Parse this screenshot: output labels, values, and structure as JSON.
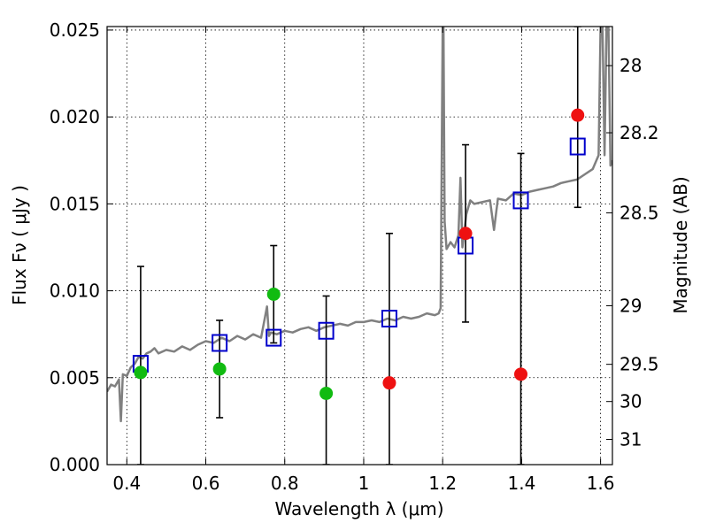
{
  "chart_data": {
    "type": "scatter",
    "xlabel": "Wavelength  λ (μm)",
    "ylabel": "Flux  Fν  ( μJy )",
    "ylabel_right": "Magnitude (AB)",
    "xlim": [
      0.35,
      1.63
    ],
    "ylim": [
      0.0,
      0.0252
    ],
    "grid": true,
    "x_ticks": [
      0.4,
      0.6,
      0.8,
      1.0,
      1.2,
      1.4,
      1.6
    ],
    "x_tick_labels": [
      "0.4",
      "0.6",
      "0.8",
      "1",
      "1.2",
      "1.4",
      "1.6"
    ],
    "y_ticks": [
      0.0,
      0.005,
      0.01,
      0.015,
      0.02,
      0.025
    ],
    "y_tick_labels": [
      "0.000",
      "0.005",
      "0.010",
      "0.015",
      "0.020",
      "0.025"
    ],
    "right_ticks": [
      {
        "label": "28",
        "flux": 0.02295
      },
      {
        "label": "28.2",
        "flux": 0.01909
      },
      {
        "label": "28.5",
        "flux": 0.01448
      },
      {
        "label": "29",
        "flux": 0.00914
      },
      {
        "label": "29.5",
        "flux": 0.00577
      },
      {
        "label": "30",
        "flux": 0.00363
      },
      {
        "label": "31",
        "flux": 0.00145
      }
    ],
    "model_color": "#808080",
    "spectrum": {
      "x": [
        0.35,
        0.36,
        0.37,
        0.38,
        0.385,
        0.39,
        0.4,
        0.41,
        0.42,
        0.43,
        0.44,
        0.45,
        0.46,
        0.47,
        0.48,
        0.5,
        0.52,
        0.54,
        0.56,
        0.58,
        0.6,
        0.62,
        0.64,
        0.66,
        0.68,
        0.7,
        0.72,
        0.74,
        0.755,
        0.76,
        0.765,
        0.78,
        0.8,
        0.82,
        0.84,
        0.86,
        0.88,
        0.9,
        0.92,
        0.94,
        0.96,
        0.98,
        1.0,
        1.02,
        1.04,
        1.06,
        1.08,
        1.1,
        1.12,
        1.14,
        1.16,
        1.18,
        1.19,
        1.195,
        1.2,
        1.202,
        1.205,
        1.21,
        1.22,
        1.23,
        1.24,
        1.245,
        1.25,
        1.26,
        1.27,
        1.28,
        1.3,
        1.32,
        1.33,
        1.34,
        1.36,
        1.38,
        1.4,
        1.42,
        1.44,
        1.46,
        1.48,
        1.5,
        1.52,
        1.54,
        1.56,
        1.58,
        1.595,
        1.6,
        1.605,
        1.61,
        1.615,
        1.62,
        1.625,
        1.63
      ],
      "y": [
        0.0042,
        0.0046,
        0.0045,
        0.0049,
        0.0025,
        0.0052,
        0.0051,
        0.0056,
        0.0058,
        0.0062,
        0.0061,
        0.0064,
        0.0065,
        0.0067,
        0.0064,
        0.0066,
        0.0065,
        0.0068,
        0.0066,
        0.0069,
        0.0071,
        0.007,
        0.0073,
        0.0071,
        0.0074,
        0.0072,
        0.0075,
        0.0073,
        0.0091,
        0.0074,
        0.0076,
        0.0075,
        0.0077,
        0.0076,
        0.0078,
        0.0079,
        0.0077,
        0.0079,
        0.008,
        0.0081,
        0.008,
        0.0082,
        0.0082,
        0.0083,
        0.0082,
        0.0084,
        0.0083,
        0.0085,
        0.0084,
        0.0085,
        0.0087,
        0.0086,
        0.0087,
        0.009,
        0.0252,
        0.0252,
        0.014,
        0.0124,
        0.0128,
        0.0125,
        0.0132,
        0.0165,
        0.0125,
        0.0144,
        0.0152,
        0.015,
        0.0151,
        0.0152,
        0.0135,
        0.0153,
        0.0152,
        0.0156,
        0.0155,
        0.0157,
        0.0158,
        0.0159,
        0.016,
        0.0162,
        0.0163,
        0.0164,
        0.0167,
        0.017,
        0.0178,
        0.0252,
        0.0252,
        0.0178,
        0.0252,
        0.0252,
        0.0172,
        0.0175
      ]
    },
    "series": [
      {
        "marker": "square",
        "color": "#0000cc",
        "points": [
          {
            "x": 0.435,
            "y": 0.0058
          },
          {
            "x": 0.635,
            "y": 0.007
          },
          {
            "x": 0.772,
            "y": 0.0073
          },
          {
            "x": 0.905,
            "y": 0.0077
          },
          {
            "x": 1.065,
            "y": 0.0084
          },
          {
            "x": 1.258,
            "y": 0.0126
          },
          {
            "x": 1.398,
            "y": 0.0152
          },
          {
            "x": 1.542,
            "y": 0.0183
          }
        ]
      },
      {
        "marker": "circle",
        "color": "#11bb11",
        "points": [
          {
            "x": 0.435,
            "y": 0.0053,
            "err_low": 0.0,
            "err_high": 0.0114
          },
          {
            "x": 0.635,
            "y": 0.0055,
            "err_low": 0.0027,
            "err_high": 0.0083
          },
          {
            "x": 0.772,
            "y": 0.0098,
            "err_low": 0.007,
            "err_high": 0.0126
          },
          {
            "x": 0.905,
            "y": 0.0041,
            "err_low": 0.0,
            "err_high": 0.0097
          }
        ]
      },
      {
        "marker": "circle",
        "color": "#ee1111",
        "points": [
          {
            "x": 1.065,
            "y": 0.0047,
            "err_low": 0.0,
            "err_high": 0.0133
          },
          {
            "x": 1.258,
            "y": 0.0133,
            "err_low": 0.0082,
            "err_high": 0.0184
          },
          {
            "x": 1.398,
            "y": 0.0052,
            "err_low": 0.0,
            "err_high": 0.0179
          },
          {
            "x": 1.542,
            "y": 0.0201,
            "err_low": 0.0148,
            "err_high": 0.0252
          }
        ]
      }
    ]
  }
}
